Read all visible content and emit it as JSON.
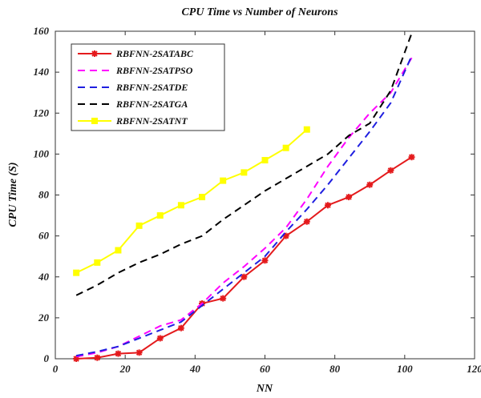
{
  "chart_data": {
    "type": "line",
    "title": "CPU Time vs Number of Neurons",
    "xlabel": "NN",
    "ylabel": "CPU Time (S)",
    "xlim": [
      0,
      120
    ],
    "ylim": [
      0,
      160
    ],
    "xticks": [
      0,
      20,
      40,
      60,
      80,
      100,
      120
    ],
    "yticks": [
      0,
      20,
      40,
      60,
      80,
      100,
      120,
      140,
      160
    ],
    "grid": false,
    "legend_position": "top-left",
    "series": [
      {
        "name": "RBFNN-2SATABC",
        "color": "#e41a1c",
        "style": "solid",
        "marker": "asterisk",
        "x": [
          6,
          12,
          18,
          24,
          30,
          36,
          42,
          48,
          54,
          60,
          66,
          72,
          78,
          84,
          90,
          96,
          102
        ],
        "y": [
          0,
          0.5,
          2.5,
          3,
          10,
          15,
          27,
          29.5,
          40,
          48,
          60,
          67,
          75,
          79,
          85,
          92,
          98.5
        ]
      },
      {
        "name": "RBFNN-2SATPSO",
        "color": "#ff00ff",
        "style": "dashed",
        "marker": "none",
        "x": [
          6,
          12,
          18,
          24,
          30,
          36,
          42,
          48,
          54,
          60,
          66,
          72,
          78,
          84,
          90,
          96,
          102
        ],
        "y": [
          1,
          3,
          6,
          11,
          16,
          19,
          27,
          37,
          45,
          54,
          64,
          78,
          94,
          108,
          120,
          130,
          147
        ]
      },
      {
        "name": "RBFNN-2SATDE",
        "color": "#1f1fe0",
        "style": "dashed",
        "marker": "none",
        "x": [
          6,
          12,
          18,
          24,
          30,
          36,
          42,
          48,
          54,
          60,
          66,
          72,
          78,
          84,
          90,
          96,
          102
        ],
        "y": [
          1.5,
          3.5,
          6,
          10,
          14,
          18,
          26,
          34,
          42,
          50,
          62,
          73,
          85,
          98,
          111,
          125,
          148
        ]
      },
      {
        "name": "RBFNN-2SATGA",
        "color": "#000000",
        "style": "dashed",
        "marker": "none",
        "x": [
          6,
          12,
          18,
          24,
          30,
          36,
          42,
          48,
          54,
          60,
          66,
          72,
          78,
          84,
          90,
          96,
          102
        ],
        "y": [
          31,
          36,
          42,
          47,
          51,
          56,
          60,
          68,
          75,
          82,
          88,
          94,
          100,
          109,
          115,
          131,
          159
        ]
      },
      {
        "name": "RBFNN-2SATNT",
        "color": "#ffff00",
        "style": "solid",
        "marker": "square",
        "x": [
          6,
          12,
          18,
          24,
          30,
          36,
          42,
          48,
          54,
          60,
          66,
          72
        ],
        "y": [
          42,
          47,
          53,
          65,
          70,
          75,
          79,
          87,
          91,
          97,
          103,
          112
        ]
      }
    ]
  }
}
